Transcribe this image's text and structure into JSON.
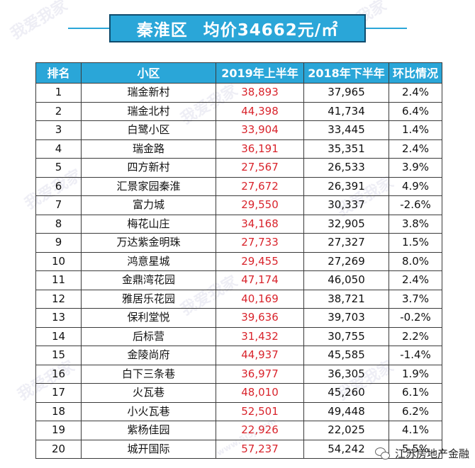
{
  "header": {
    "district": "秦淮区",
    "avg_price": "均价34662元/㎡"
  },
  "table": {
    "columns": [
      "排名",
      "小区",
      "2019年上半年",
      "2018年下半年",
      "环比情况"
    ],
    "rows": [
      {
        "rank": "1",
        "name": "瑞金新村",
        "h1_2019": "38,893",
        "h2_2018": "37,965",
        "change": "2.4%"
      },
      {
        "rank": "2",
        "name": "瑞金北村",
        "h1_2019": "44,398",
        "h2_2018": "41,734",
        "change": "6.4%"
      },
      {
        "rank": "3",
        "name": "白鹭小区",
        "h1_2019": "33,904",
        "h2_2018": "33,445",
        "change": "1.4%"
      },
      {
        "rank": "4",
        "name": "瑞金路",
        "h1_2019": "36,191",
        "h2_2018": "35,351",
        "change": "2.4%"
      },
      {
        "rank": "5",
        "name": "四方新村",
        "h1_2019": "27,567",
        "h2_2018": "26,533",
        "change": "3.9%"
      },
      {
        "rank": "6",
        "name": "汇景家园秦淮",
        "h1_2019": "27,672",
        "h2_2018": "26,391",
        "change": "4.9%"
      },
      {
        "rank": "7",
        "name": "富力城",
        "h1_2019": "29,550",
        "h2_2018": "30,337",
        "change": "-2.6%"
      },
      {
        "rank": "8",
        "name": "梅花山庄",
        "h1_2019": "34,168",
        "h2_2018": "32,905",
        "change": "3.8%"
      },
      {
        "rank": "9",
        "name": "万达紫金明珠",
        "h1_2019": "27,733",
        "h2_2018": "27,327",
        "change": "1.5%"
      },
      {
        "rank": "10",
        "name": "鸿意星城",
        "h1_2019": "29,455",
        "h2_2018": "27,269",
        "change": "8.0%"
      },
      {
        "rank": "11",
        "name": "金鼎湾花园",
        "h1_2019": "47,174",
        "h2_2018": "46,050",
        "change": "2.4%"
      },
      {
        "rank": "12",
        "name": "雅居乐花园",
        "h1_2019": "40,169",
        "h2_2018": "38,721",
        "change": "3.7%"
      },
      {
        "rank": "13",
        "name": "保利堂悦",
        "h1_2019": "39,636",
        "h2_2018": "39,703",
        "change": "-0.2%"
      },
      {
        "rank": "14",
        "name": "后标营",
        "h1_2019": "31,432",
        "h2_2018": "30,755",
        "change": "2.2%"
      },
      {
        "rank": "15",
        "name": "金陵尚府",
        "h1_2019": "44,937",
        "h2_2018": "45,585",
        "change": "-1.4%"
      },
      {
        "rank": "16",
        "name": "白下三条巷",
        "h1_2019": "36,977",
        "h2_2018": "36,305",
        "change": "1.9%"
      },
      {
        "rank": "17",
        "name": "火瓦巷",
        "h1_2019": "48,010",
        "h2_2018": "45,260",
        "change": "6.1%"
      },
      {
        "rank": "18",
        "name": "小火瓦巷",
        "h1_2019": "52,501",
        "h2_2018": "49,448",
        "change": "6.2%"
      },
      {
        "rank": "19",
        "name": "紫杨佳园",
        "h1_2019": "22,926",
        "h2_2018": "22,025",
        "change": "4.1%"
      },
      {
        "rank": "20",
        "name": "城开国际",
        "h1_2019": "57,237",
        "h2_2018": "54,242",
        "change": "5.5%"
      }
    ]
  },
  "footer": {
    "brand": "江苏房地产金融",
    "icon": "wechat-icon"
  },
  "watermark": {
    "text": "我爱我家",
    "site": "www.5i5j.com"
  },
  "colors": {
    "header_bg": "#2aa6d8",
    "title_border": "#0f4c6e",
    "new_price": "#d9242c"
  }
}
